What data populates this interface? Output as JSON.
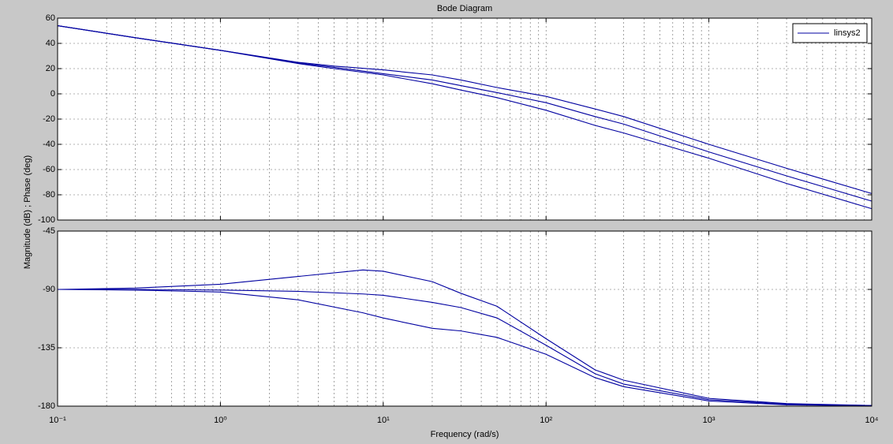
{
  "chart_data": [
    {
      "type": "line",
      "title": "Bode Diagram",
      "ylabel": "Magnitude (dB) ; Phase (deg)",
      "xscale": "log",
      "xlim": [
        0.1,
        10000
      ],
      "ylim": [
        -100,
        60
      ],
      "yticks": [
        60,
        40,
        20,
        0,
        -20,
        -40,
        -60,
        -80,
        -100
      ],
      "grid": true,
      "minor_grid": true,
      "legend": "upper right",
      "x": [
        0.1,
        0.3,
        1,
        3,
        5,
        10,
        20,
        30,
        50,
        100,
        200,
        300,
        1000,
        3000,
        10000
      ],
      "series": [
        {
          "name": "linsys2",
          "color": "#0000a0",
          "values": [
            54,
            44.5,
            34.5,
            25,
            22,
            19,
            15,
            11,
            5,
            -2,
            -12,
            -18,
            -40,
            -59,
            -79
          ]
        },
        {
          "name": "linsys2",
          "color": "#0000a0",
          "values": [
            54,
            44.5,
            34.5,
            24.5,
            21,
            16,
            11,
            6.5,
            1,
            -7,
            -18,
            -24,
            -46,
            -65,
            -85
          ]
        },
        {
          "name": "linsys2",
          "color": "#0000a0",
          "values": [
            54,
            44.5,
            34.5,
            24,
            20,
            15,
            8,
            3,
            -3,
            -13,
            -25,
            -31,
            -51,
            -71,
            -91
          ]
        }
      ]
    },
    {
      "type": "line",
      "xlabel": "Frequency  (rad/s)",
      "xscale": "log",
      "xlim": [
        0.1,
        10000
      ],
      "ylim": [
        -180,
        -45
      ],
      "xticks": [
        {
          "value": 0.1,
          "label": "10⁻¹"
        },
        {
          "value": 1,
          "label": "10⁰"
        },
        {
          "value": 10,
          "label": "10¹"
        },
        {
          "value": 100,
          "label": "10²"
        },
        {
          "value": 1000,
          "label": "10³"
        },
        {
          "value": 10000,
          "label": "10⁴"
        }
      ],
      "yticks": [
        -45,
        -90,
        -135,
        -180
      ],
      "grid": true,
      "minor_grid": true,
      "x": [
        0.1,
        0.3,
        1,
        3,
        7.5,
        10,
        20,
        30,
        50,
        100,
        200,
        300,
        1000,
        3000,
        10000
      ],
      "series": [
        {
          "name": "linsys2",
          "color": "#0000a0",
          "values": [
            -90,
            -89,
            -86,
            -80,
            -75,
            -76,
            -84,
            -93,
            -103,
            -128,
            -152,
            -160,
            -174,
            -178,
            -179.5
          ]
        },
        {
          "name": "linsys2",
          "color": "#0000a0",
          "values": [
            -90,
            -90,
            -90.5,
            -91.5,
            -93.5,
            -94.5,
            -100,
            -104,
            -112,
            -133,
            -155,
            -163,
            -175,
            -178.5,
            -179.5
          ]
        },
        {
          "name": "linsys2",
          "color": "#0000a0",
          "values": [
            -90,
            -90.5,
            -92,
            -98,
            -108,
            -112,
            -120,
            -122,
            -127,
            -140,
            -158,
            -165,
            -176,
            -179,
            -179.7
          ]
        }
      ]
    }
  ]
}
